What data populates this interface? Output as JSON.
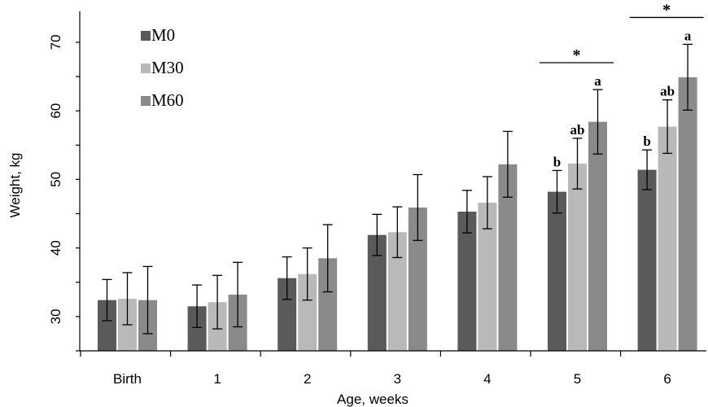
{
  "chart_data": {
    "type": "bar",
    "xlabel": "Age, weeks",
    "ylabel": "Weight, kg",
    "categories": [
      "Birth",
      "1",
      "2",
      "3",
      "4",
      "5",
      "6"
    ],
    "yticks": [
      30,
      40,
      50,
      60,
      70
    ],
    "ylim": [
      25,
      74.5
    ],
    "grid": false,
    "legend_position": "top-left",
    "series": [
      {
        "name": "M0",
        "color": "#5a5a5a",
        "values": [
          32.4,
          31.5,
          35.6,
          41.9,
          45.3,
          48.2,
          51.4
        ],
        "errors": [
          3.0,
          3.1,
          3.1,
          3.0,
          3.1,
          3.1,
          2.9
        ],
        "labels": [
          "",
          "",
          "",
          "",
          "",
          "b",
          "b"
        ]
      },
      {
        "name": "M30",
        "color": "#b9b9b9",
        "values": [
          32.6,
          32.1,
          36.2,
          42.3,
          46.6,
          52.3,
          57.7
        ],
        "errors": [
          3.8,
          3.9,
          3.8,
          3.7,
          3.8,
          3.7,
          3.9
        ],
        "labels": [
          "",
          "",
          "",
          "",
          "",
          "ab",
          "ab"
        ]
      },
      {
        "name": "M60",
        "color": "#8a8a8a",
        "values": [
          32.4,
          33.2,
          38.5,
          45.9,
          52.2,
          58.4,
          64.9
        ],
        "errors": [
          4.9,
          4.7,
          4.9,
          4.8,
          4.8,
          4.7,
          4.8
        ],
        "labels": [
          "",
          "",
          "",
          "",
          "",
          "a",
          "a"
        ]
      }
    ],
    "annotations": [
      {
        "category": "5",
        "text": "*"
      },
      {
        "category": "6",
        "text": "*"
      }
    ]
  }
}
